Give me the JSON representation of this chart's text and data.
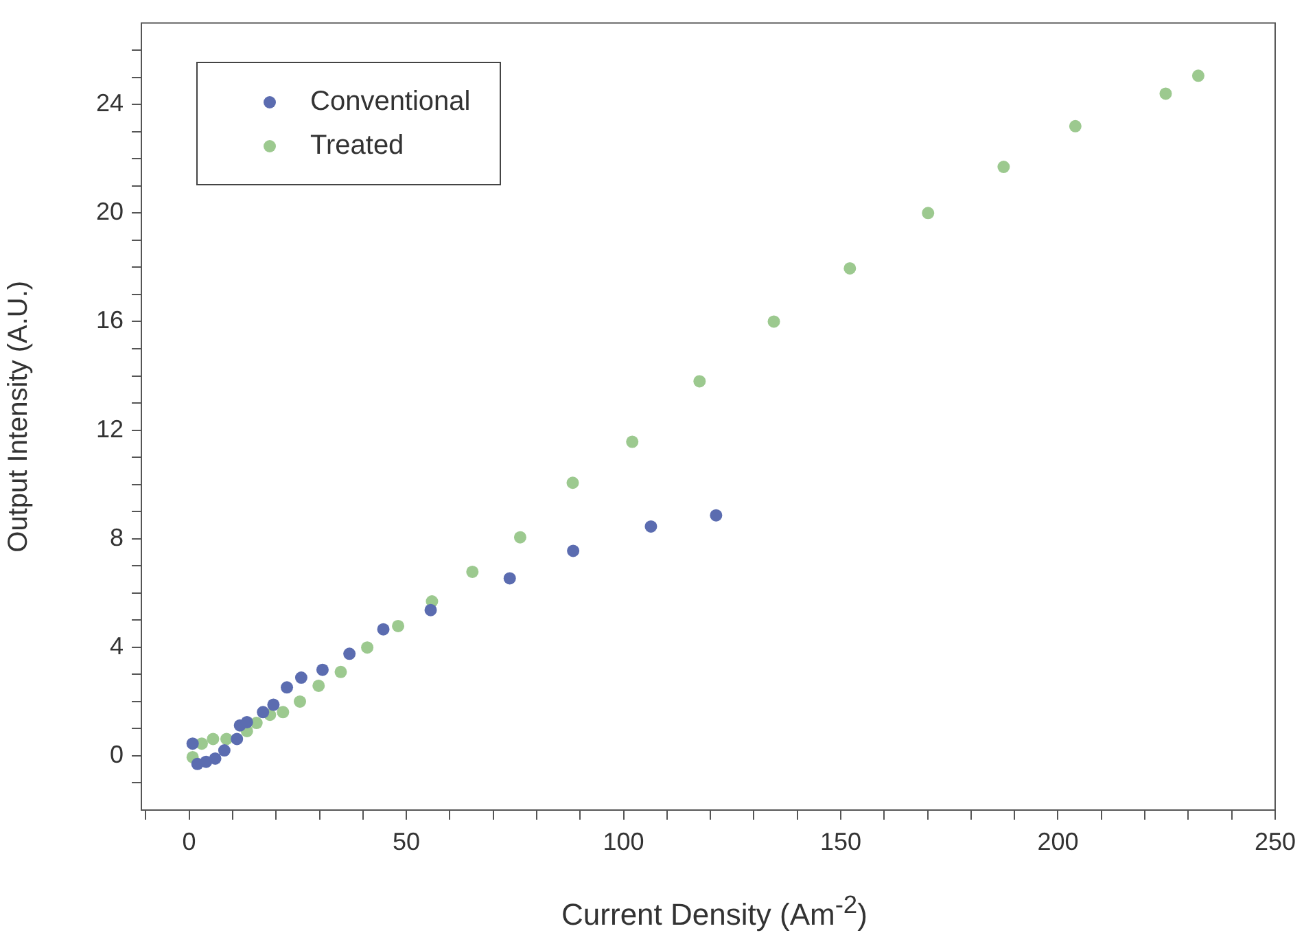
{
  "chart_data": {
    "type": "scatter",
    "xlabel": "Current Density (Am$^{-2}$)",
    "ylabel": "Output Intensity (A.U.)",
    "xlim": [
      -11,
      250
    ],
    "ylim": [
      -2,
      27
    ],
    "xticks": [
      {
        "value": -10,
        "label": null
      },
      0,
      {
        "value": 10,
        "label": null
      },
      {
        "value": 20,
        "label": null
      },
      {
        "value": 30,
        "label": null
      },
      {
        "value": 40,
        "label": null
      },
      50,
      {
        "value": 60,
        "label": null
      },
      {
        "value": 70,
        "label": null
      },
      {
        "value": 80,
        "label": null
      },
      {
        "value": 90,
        "label": null
      },
      100,
      {
        "value": 110,
        "label": null
      },
      {
        "value": 120,
        "label": null
      },
      {
        "value": 130,
        "label": null
      },
      {
        "value": 140,
        "label": null
      },
      150,
      {
        "value": 160,
        "label": null
      },
      {
        "value": 170,
        "label": null
      },
      {
        "value": 180,
        "label": null
      },
      {
        "value": 190,
        "label": null
      },
      200,
      {
        "value": 210,
        "label": null
      },
      {
        "value": 220,
        "label": null
      },
      {
        "value": 230,
        "label": null
      },
      {
        "value": 240,
        "label": null
      },
      250
    ],
    "yticks": [
      {
        "value": -1,
        "label": null
      },
      0,
      {
        "value": 1,
        "label": null
      },
      {
        "value": 2,
        "label": null
      },
      {
        "value": 3,
        "label": null
      },
      4,
      {
        "value": 5,
        "label": null
      },
      {
        "value": 6,
        "label": null
      },
      {
        "value": 7,
        "label": null
      },
      8,
      {
        "value": 9,
        "label": null
      },
      {
        "value": 10,
        "label": null
      },
      {
        "value": 11,
        "label": null
      },
      12,
      {
        "value": 13,
        "label": null
      },
      {
        "value": 14,
        "label": null
      },
      {
        "value": 15,
        "label": null
      },
      16,
      {
        "value": 17,
        "label": null
      },
      {
        "value": 18,
        "label": null
      },
      {
        "value": 19,
        "label": null
      },
      20,
      {
        "value": 21,
        "label": null
      },
      {
        "value": 22,
        "label": null
      },
      {
        "value": 23,
        "label": null
      },
      24,
      {
        "value": 25,
        "label": null
      },
      {
        "value": 26,
        "label": null
      }
    ],
    "grid": false,
    "legend": "top left",
    "marker": "circle",
    "series": [
      {
        "name": "Conventional",
        "color": "#5b6cb0",
        "x": [
          0.8,
          1.9,
          3.9,
          6,
          8.1,
          11,
          11.7,
          13.3,
          17,
          19.4,
          22.5,
          25.8,
          30.7,
          36.9,
          44.7,
          55.6,
          73.8,
          88.4,
          106.3,
          121.3
        ],
        "values": [
          0.45,
          -0.3,
          -0.22,
          -0.1,
          0.2,
          0.62,
          1.12,
          1.24,
          1.61,
          1.88,
          2.52,
          2.88,
          3.17,
          3.76,
          4.66,
          5.37,
          6.54,
          7.55,
          8.45,
          8.86
        ]
      },
      {
        "name": "Treated",
        "color": "#9cc98f",
        "x": [
          0.8,
          2.9,
          5.5,
          8.6,
          13.3,
          15.5,
          18.6,
          21.6,
          25.5,
          29.8,
          34.9,
          41,
          48.1,
          55.9,
          65.2,
          76.2,
          88.3,
          102,
          117.5,
          134.6,
          152.1,
          170.1,
          187.5,
          204,
          224.8,
          232.3
        ],
        "values": [
          -0.05,
          0.45,
          0.62,
          0.62,
          0.91,
          1.21,
          1.51,
          1.61,
          2,
          2.58,
          3.09,
          3.99,
          4.78,
          5.69,
          6.78,
          8.05,
          10.06,
          11.57,
          13.8,
          16,
          17.96,
          20,
          21.7,
          23.2,
          24.4,
          25.06
        ]
      }
    ]
  }
}
